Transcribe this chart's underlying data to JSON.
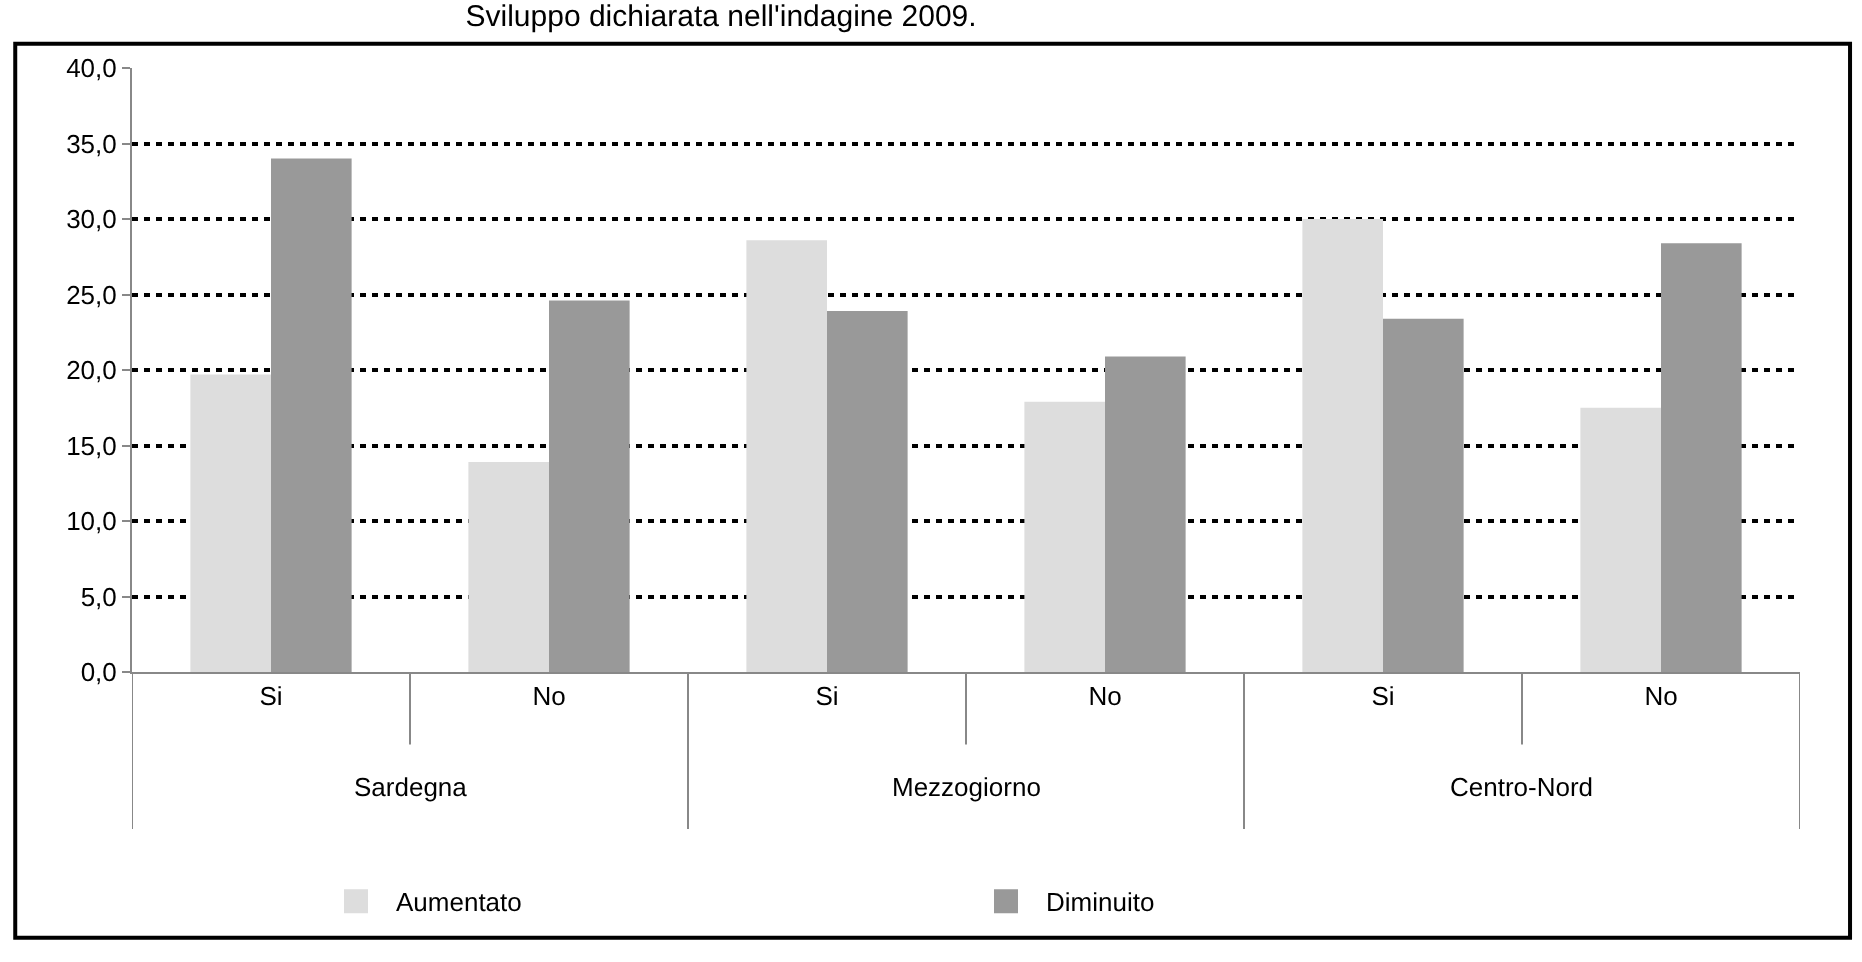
{
  "chart_data": {
    "type": "bar",
    "title": "Sviluppo dichiarata nell'indagine 2009.",
    "categories": [
      "Si",
      "No",
      "Si",
      "No",
      "Si",
      "No"
    ],
    "series": [
      {
        "name": "Aumentato",
        "color": "#dddddd",
        "values": [
          19.7,
          13.9,
          28.6,
          17.9,
          30.0,
          17.5
        ]
      },
      {
        "name": "Diminuito",
        "color": "#999999",
        "values": [
          34.0,
          24.6,
          23.9,
          20.9,
          23.4,
          28.4
        ]
      }
    ],
    "annotations": [
      "Sardegna",
      "Mezzogiorno",
      "Centro-Nord"
    ],
    "ylim": [
      0,
      40
    ],
    "yticks": [
      {
        "value": 0,
        "label": "0,0"
      },
      {
        "value": 5,
        "label": "5,0"
      },
      {
        "value": 10,
        "label": "10,0"
      },
      {
        "value": 15,
        "label": "15,0"
      },
      {
        "value": 20,
        "label": "20,0"
      },
      {
        "value": 25,
        "label": "25,0"
      },
      {
        "value": 30,
        "label": "30,0"
      },
      {
        "value": 35,
        "label": "35,0"
      },
      {
        "value": 40,
        "label": "40,0"
      }
    ],
    "grid": "y",
    "legend": "bottom"
  }
}
